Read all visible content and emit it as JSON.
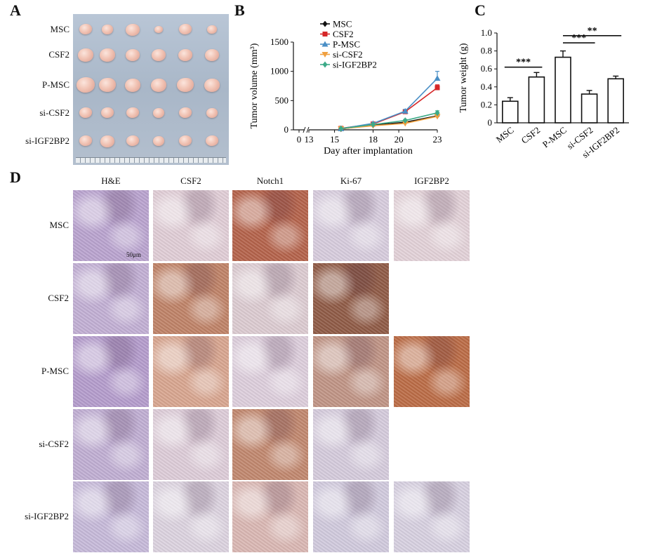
{
  "panels": {
    "a": "A",
    "b": "B",
    "c": "C",
    "d": "D"
  },
  "panel_a": {
    "groups": [
      "MSC",
      "CSF2",
      "P-MSC",
      "si-CSF2",
      "si-IGF2BP2"
    ],
    "tumor_size_px": [
      [
        18,
        16,
        20,
        12,
        18,
        14
      ],
      [
        22,
        22,
        20,
        20,
        20,
        20
      ],
      [
        26,
        24,
        22,
        22,
        24,
        22
      ],
      [
        18,
        18,
        18,
        16,
        18,
        16
      ],
      [
        18,
        20,
        18,
        16,
        18,
        18
      ]
    ]
  },
  "chart_data": [
    {
      "type": "line",
      "xlabel": "Day after implantation",
      "ylabel": "Tumor volume (mm³)",
      "ylim": [
        0,
        1500
      ],
      "yticks": [
        "0",
        "500",
        "1000",
        "1500"
      ],
      "xticks": [
        "0",
        "13",
        "15",
        "18",
        "20",
        "23"
      ],
      "x": [
        15.5,
        18,
        20.5,
        23
      ],
      "series": [
        {
          "name": "MSC",
          "color": "#111111",
          "marker": "diamond",
          "values": [
            15,
            80,
            130,
            240
          ],
          "err": [
            8,
            12,
            18,
            30
          ]
        },
        {
          "name": "CSF2",
          "color": "#d62728",
          "marker": "square",
          "values": [
            25,
            100,
            310,
            720
          ],
          "err": [
            8,
            15,
            25,
            50
          ]
        },
        {
          "name": "P-MSC",
          "color": "#4a8fc6",
          "marker": "triangle",
          "values": [
            20,
            110,
            320,
            880
          ],
          "err": [
            8,
            15,
            30,
            120
          ]
        },
        {
          "name": "si-CSF2",
          "color": "#f0a040",
          "marker": "triangle-down",
          "values": [
            18,
            70,
            110,
            230
          ],
          "err": [
            6,
            10,
            15,
            40
          ]
        },
        {
          "name": "si-IGF2BP2",
          "color": "#3daa88",
          "marker": "diamond",
          "values": [
            22,
            90,
            160,
            290
          ],
          "err": [
            8,
            12,
            18,
            35
          ]
        }
      ],
      "legend_position": "top-left"
    },
    {
      "type": "bar",
      "ylabel": "Tumor weight (g)",
      "ylim": [
        0,
        1.0
      ],
      "yticks": [
        "0",
        "0.2",
        "0.4",
        "0.6",
        "0.8",
        "1.0"
      ],
      "categories": [
        "MSC",
        "CSF2",
        "P-MSC",
        "si-CSF2",
        "si-IGF2BP2"
      ],
      "values": [
        0.24,
        0.51,
        0.73,
        0.32,
        0.49
      ],
      "err": [
        0.04,
        0.05,
        0.07,
        0.04,
        0.03
      ],
      "significance": [
        {
          "from": 0,
          "to": 1,
          "label": "***"
        },
        {
          "from": 2,
          "to": 3,
          "label": "***"
        },
        {
          "from": 2,
          "to": 4,
          "label": "**"
        }
      ]
    }
  ],
  "panel_d": {
    "columns": [
      "H&E",
      "CSF2",
      "Notch1",
      "Ki-67",
      "IGF2BP2"
    ],
    "rows": [
      "MSC",
      "CSF2",
      "P-MSC",
      "si-CSF2",
      "si-IGF2BP2"
    ],
    "scale_bar": "50μm",
    "stain_colors": [
      [
        "#b9a3cf",
        "#e0cdd6",
        "#b4624a",
        "#d7ccdd",
        "#e3d2d8"
      ],
      [
        "#c2afd4",
        "#bf8267",
        "#dccbd1",
        "#8f5a45",
        null
      ],
      [
        "#b49ccc",
        "#d8a58f",
        "#ddcedc",
        "#c09485",
        "#bb6b45"
      ],
      [
        "#c0aed3",
        "#ddccd8",
        "#c1876e",
        "#d5cbdc",
        null
      ],
      [
        "#c6b9d9",
        "#dcd3df",
        "#dab7b3",
        "#d1cadd",
        "#d7d0e0"
      ]
    ]
  }
}
